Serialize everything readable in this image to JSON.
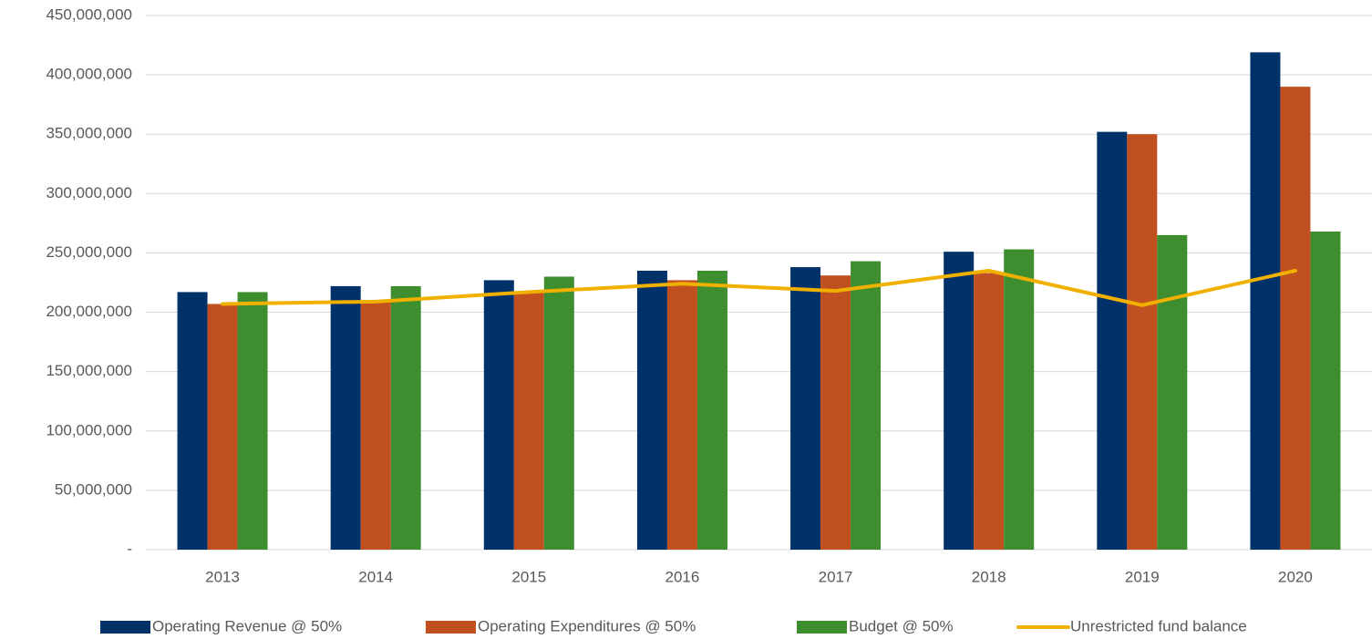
{
  "chart_data": {
    "type": "bar",
    "categories": [
      "2013",
      "2014",
      "2015",
      "2016",
      "2017",
      "2018",
      "2019",
      "2020"
    ],
    "series": [
      {
        "name": "Operating Revenue @ 50%",
        "color": "#003168",
        "type": "bar",
        "values": [
          217000000,
          222000000,
          227000000,
          235000000,
          238000000,
          251000000,
          352000000,
          419000000
        ]
      },
      {
        "name": "Operating Expenditures @ 50%",
        "color": "#c0501f",
        "type": "bar",
        "values": [
          207000000,
          210000000,
          217000000,
          227000000,
          231000000,
          233000000,
          350000000,
          390000000
        ]
      },
      {
        "name": "Budget @ 50%",
        "color": "#3e8e2f",
        "type": "bar",
        "values": [
          217000000,
          222000000,
          230000000,
          235000000,
          243000000,
          253000000,
          265000000,
          268000000
        ]
      },
      {
        "name": "Unrestricted fund balance",
        "color": "#f0b000",
        "type": "line",
        "values": [
          207000000,
          209000000,
          217000000,
          224000000,
          218000000,
          235000000,
          206000000,
          235000000
        ]
      }
    ],
    "ylim": [
      0,
      450000000
    ],
    "yticks": [
      {
        "value": 0,
        "label": "-"
      },
      {
        "value": 50000000,
        "label": "50,000,000"
      },
      {
        "value": 100000000,
        "label": "100,000,000"
      },
      {
        "value": 150000000,
        "label": "150,000,000"
      },
      {
        "value": 200000000,
        "label": "200,000,000"
      },
      {
        "value": 250000000,
        "label": "250,000,000"
      },
      {
        "value": 300000000,
        "label": "300,000,000"
      },
      {
        "value": 350000000,
        "label": "350,000,000"
      },
      {
        "value": 400000000,
        "label": "400,000,000"
      },
      {
        "value": 450000000,
        "label": "450,000,000"
      }
    ],
    "grid": true,
    "legend": "bottom"
  }
}
